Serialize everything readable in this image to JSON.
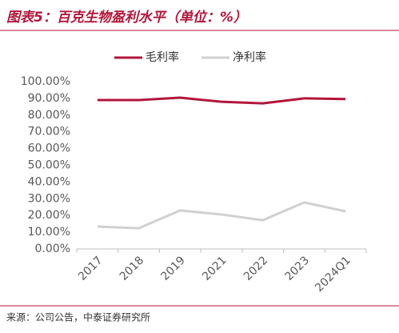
{
  "chart_data": {
    "type": "line",
    "title": "图表5：百克生物盈利水平（单位：%）",
    "categories": [
      "2017",
      "2018",
      "2019",
      "2021",
      "2022",
      "2023",
      "2024Q1"
    ],
    "series": [
      {
        "name": "毛利率",
        "color": "#b2163a",
        "values": [
          89.0,
          89.0,
          90.4,
          88.0,
          87.0,
          90.0,
          89.6
        ]
      },
      {
        "name": "净利率",
        "color": "#d0d0d0",
        "values": [
          13.4,
          12.4,
          23.0,
          20.6,
          17.2,
          27.8,
          22.5
        ]
      }
    ],
    "ylim": [
      0,
      100
    ],
    "yticks": [
      {
        "value": 0,
        "label": "0.00%"
      },
      {
        "value": 10,
        "label": "10.00%"
      },
      {
        "value": 20,
        "label": "20.00%"
      },
      {
        "value": 30,
        "label": "30.00%"
      },
      {
        "value": 40,
        "label": "40.00%"
      },
      {
        "value": 50,
        "label": "50.00%"
      },
      {
        "value": 60,
        "label": "60.00%"
      },
      {
        "value": 70,
        "label": "70.00%"
      },
      {
        "value": 80,
        "label": "80.00%"
      },
      {
        "value": 90,
        "label": "90.00%"
      },
      {
        "value": 100,
        "label": "100.00%"
      }
    ],
    "legend": "top",
    "source": "来源：公司公告，中泰证券研究所"
  }
}
